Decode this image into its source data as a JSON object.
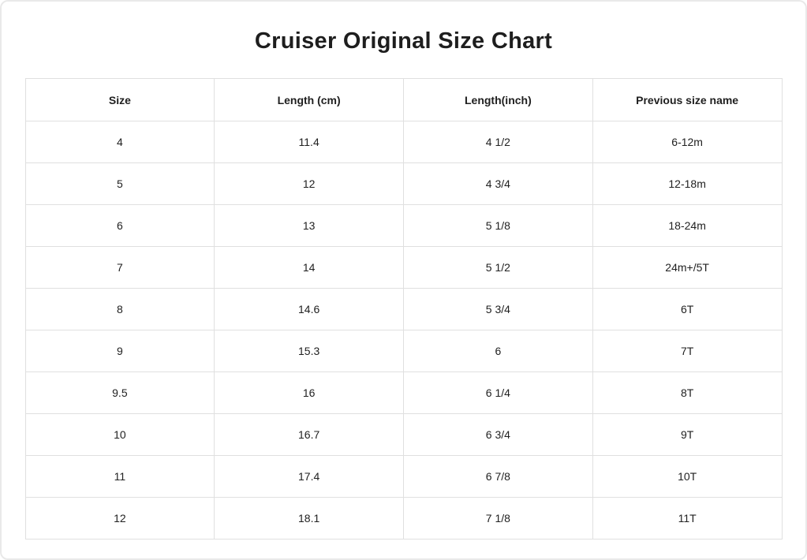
{
  "page": {
    "title": "Cruiser Original Size Chart"
  },
  "colors": {
    "background": "#ffffff",
    "card_border": "#e9e9e9",
    "table_border": "#e0e0e0",
    "text": "#212121",
    "title_text": "#1e1e1e"
  },
  "chart_data": {
    "type": "table",
    "title": "Cruiser Original Size Chart",
    "columns": [
      "Size",
      "Length (cm)",
      "Length(inch)",
      "Previous size name"
    ],
    "rows": [
      [
        "4",
        "11.4",
        "4 1/2",
        "6-12m"
      ],
      [
        "5",
        "12",
        "4 3/4",
        "12-18m"
      ],
      [
        "6",
        "13",
        "5 1/8",
        "18-24m"
      ],
      [
        "7",
        "14",
        "5 1/2",
        "24m+/5T"
      ],
      [
        "8",
        "14.6",
        "5 3/4",
        "6T"
      ],
      [
        "9",
        "15.3",
        "6",
        "7T"
      ],
      [
        "9.5",
        "16",
        "6 1/4",
        "8T"
      ],
      [
        "10",
        "16.7",
        "6 3/4",
        "9T"
      ],
      [
        "11",
        "17.4",
        "6 7/8",
        "10T"
      ],
      [
        "12",
        "18.1",
        "7 1/8",
        "11T"
      ]
    ],
    "layout": {
      "columns_equal_width": true,
      "cell_alignment": "center",
      "grid": "all-borders"
    }
  }
}
